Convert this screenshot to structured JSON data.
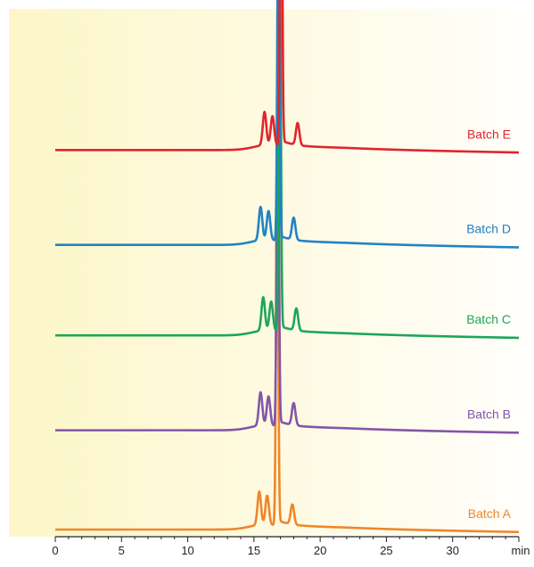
{
  "chart_data": {
    "type": "line",
    "title": "",
    "xlabel": "",
    "ylabel": "",
    "x_unit": "min",
    "xlim": [
      0,
      35
    ],
    "x_ticks": [
      0,
      5,
      10,
      15,
      20,
      25,
      30
    ],
    "grid": false,
    "y_axis_shown": false,
    "background": {
      "gradient_from": "#fdf6c8",
      "gradient_to": "#fffefa"
    },
    "legend": "labels at right end of each trace",
    "series": [
      {
        "name": "Batch A",
        "color": "#f0862a",
        "baseline": 0,
        "peaks": [
          {
            "x": 15.4,
            "h": 0.075
          },
          {
            "x": 16.0,
            "h": 0.065
          },
          {
            "x": 16.75,
            "h": 0.88
          },
          {
            "x": 17.9,
            "h": 0.045
          }
        ]
      },
      {
        "name": "Batch B",
        "color": "#8455a8",
        "baseline": 0.225,
        "peaks": [
          {
            "x": 15.5,
            "h": 0.075
          },
          {
            "x": 16.1,
            "h": 0.065
          },
          {
            "x": 16.8,
            "h": 0.87
          },
          {
            "x": 18.0,
            "h": 0.05
          }
        ]
      },
      {
        "name": "Batch C",
        "color": "#1da65a",
        "baseline": 0.44,
        "peaks": [
          {
            "x": 15.7,
            "h": 0.075
          },
          {
            "x": 16.3,
            "h": 0.065
          },
          {
            "x": 16.95,
            "h": 0.88
          },
          {
            "x": 18.2,
            "h": 0.05
          }
        ]
      },
      {
        "name": "Batch D",
        "color": "#2183c4",
        "baseline": 0.645,
        "peaks": [
          {
            "x": 15.5,
            "h": 0.075
          },
          {
            "x": 16.1,
            "h": 0.065
          },
          {
            "x": 16.85,
            "h": 0.88
          },
          {
            "x": 18.0,
            "h": 0.05
          }
        ]
      },
      {
        "name": "Batch E",
        "color": "#e0252d",
        "baseline": 0.86,
        "peaks": [
          {
            "x": 15.8,
            "h": 0.075
          },
          {
            "x": 16.4,
            "h": 0.065
          },
          {
            "x": 17.05,
            "h": 0.87
          },
          {
            "x": 18.3,
            "h": 0.05
          }
        ]
      }
    ]
  }
}
